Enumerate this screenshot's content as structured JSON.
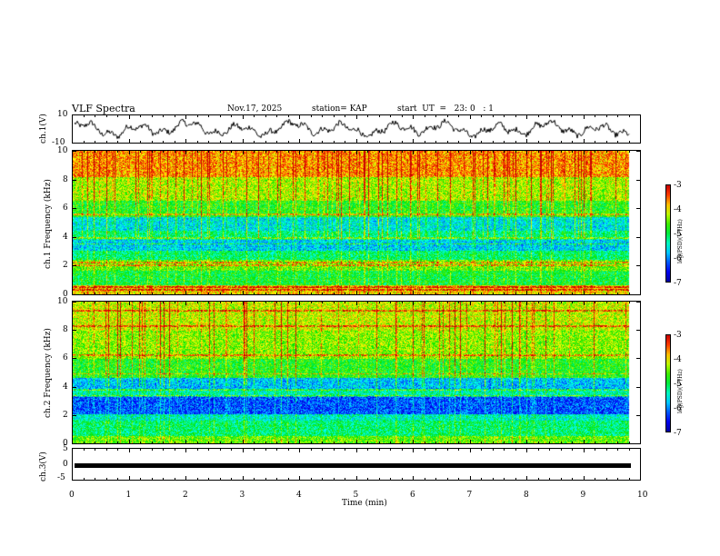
{
  "header": {
    "title": "VLF Spectra",
    "date": "Nov.17, 2025",
    "station": "station= KAP",
    "start": "start  UT  =   23: 0   : 1"
  },
  "chart_data": [
    {
      "type": "line",
      "name": "ch1-waveform",
      "ylabel": "ch.1(V)",
      "ylim": [
        -10,
        10
      ],
      "ytick_labels": [
        "10",
        "-10"
      ],
      "xlim": [
        0,
        10
      ],
      "data_end_min": 9.8
    },
    {
      "type": "heatmap",
      "name": "ch1-spectrogram",
      "ylabel": "ch.1 Frequency  (kHz)",
      "ylim": [
        0,
        10
      ],
      "ytick_labels": [
        "0",
        "2",
        "4",
        "6",
        "8",
        "10"
      ],
      "xlim": [
        0,
        10
      ],
      "data_end_min": 9.8,
      "colorbar": {
        "label": "log(PSD)(V²/Hz)",
        "range": [
          -7,
          -3
        ],
        "tick_labels": [
          "-3",
          "-4",
          "-5",
          "-6",
          "-7"
        ]
      },
      "bands": [
        {
          "from": 0,
          "to": 0.6,
          "level": -4.0
        },
        {
          "from": 0.6,
          "to": 1.6,
          "level": -5.0
        },
        {
          "from": 1.6,
          "to": 2.4,
          "level": -4.6
        },
        {
          "from": 2.4,
          "to": 3.0,
          "level": -5.2
        },
        {
          "from": 3.0,
          "to": 3.8,
          "level": -5.8
        },
        {
          "from": 3.8,
          "to": 4.4,
          "level": -5.3
        },
        {
          "from": 4.4,
          "to": 5.4,
          "level": -5.7
        },
        {
          "from": 5.4,
          "to": 6.5,
          "level": -4.9
        },
        {
          "from": 6.5,
          "to": 8.2,
          "level": -4.4
        },
        {
          "from": 8.2,
          "to": 10,
          "level": -3.8
        }
      ],
      "lines_khz": [
        0.3,
        0.5,
        2.0,
        2.2,
        3.5,
        3.9,
        5.6
      ]
    },
    {
      "type": "heatmap",
      "name": "ch2-spectrogram",
      "ylabel": "ch.2 Frequency  (kHz)",
      "ylim": [
        0,
        10
      ],
      "ytick_labels": [
        "0",
        "2",
        "4",
        "6",
        "8",
        "10"
      ],
      "xlim": [
        0,
        10
      ],
      "data_end_min": 9.8,
      "colorbar": {
        "label": "log(PSD)(V²/Hz)",
        "range": [
          -7,
          -3
        ],
        "tick_labels": [
          "-3",
          "-4",
          "-5",
          "-6",
          "-7"
        ]
      },
      "bands": [
        {
          "from": 0,
          "to": 0.5,
          "level": -4.6
        },
        {
          "from": 0.5,
          "to": 1.6,
          "level": -5.2
        },
        {
          "from": 1.6,
          "to": 2.0,
          "level": -5.5
        },
        {
          "from": 2.0,
          "to": 3.3,
          "level": -6.3
        },
        {
          "from": 3.3,
          "to": 3.8,
          "level": -5.4
        },
        {
          "from": 3.8,
          "to": 4.6,
          "level": -5.9
        },
        {
          "from": 4.6,
          "to": 6.0,
          "level": -4.9
        },
        {
          "from": 6.0,
          "to": 8.0,
          "level": -4.5
        },
        {
          "from": 8.0,
          "to": 10,
          "level": -4.3
        }
      ],
      "lines_khz": [
        3.3,
        3.8,
        4.9,
        6.2,
        8.3,
        9.4
      ]
    },
    {
      "type": "line",
      "name": "ch3-waveform",
      "ylabel": "ch.3(V)",
      "ylim": [
        -5,
        5
      ],
      "ytick_labels": [
        "5",
        "0",
        "-5"
      ],
      "xlim": [
        0,
        10
      ],
      "data_end_min": 9.8,
      "level_v": 0,
      "xlabel": "Time  (min)",
      "xtick_labels": [
        "0",
        "1",
        "2",
        "3",
        "4",
        "5",
        "6",
        "7",
        "8",
        "9",
        "10"
      ]
    }
  ]
}
